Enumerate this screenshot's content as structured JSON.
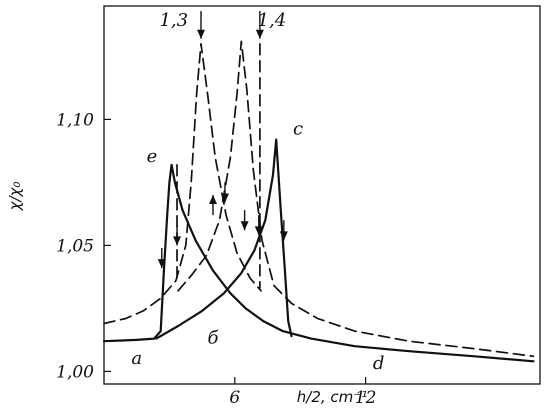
{
  "chart_data": {
    "type": "line",
    "xlabel": "h/2, cm⁻¹",
    "ylabel": "χ/χ₀",
    "xlim": [
      0,
      20
    ],
    "ylim": [
      0.995,
      1.145
    ],
    "x_ticks": [
      {
        "value": 6,
        "label": "6"
      },
      {
        "value": 12,
        "label": "12"
      }
    ],
    "y_ticks": [
      {
        "value": 1.0,
        "label": "1,00"
      },
      {
        "value": 1.05,
        "label": "1,05"
      },
      {
        "value": 1.1,
        "label": "1,10"
      }
    ],
    "grid": false,
    "series": [
      {
        "style": "solid",
        "points": [
          [
            0,
            1.012
          ],
          [
            1.5,
            1.0125
          ],
          [
            2.3,
            1.013
          ],
          [
            2.6,
            1.016
          ],
          [
            2.75,
            1.04
          ],
          [
            2.9,
            1.062
          ],
          [
            3.0,
            1.075
          ],
          [
            3.1,
            1.082
          ],
          [
            3.25,
            1.075
          ],
          [
            3.6,
            1.064
          ],
          [
            4.2,
            1.052
          ],
          [
            5.0,
            1.04
          ],
          [
            5.8,
            1.031
          ],
          [
            6.5,
            1.025
          ],
          [
            7.3,
            1.02
          ],
          [
            8.2,
            1.016
          ],
          [
            9.5,
            1.013
          ],
          [
            11.5,
            1.01
          ],
          [
            14,
            1.008
          ],
          [
            17,
            1.006
          ],
          [
            19.7,
            1.004
          ]
        ]
      },
      {
        "style": "solid",
        "points": [
          [
            2.4,
            1.013
          ],
          [
            3.4,
            1.018
          ],
          [
            4.5,
            1.024
          ],
          [
            5.5,
            1.031
          ],
          [
            6.3,
            1.039
          ],
          [
            6.9,
            1.048
          ],
          [
            7.4,
            1.06
          ],
          [
            7.75,
            1.078
          ],
          [
            7.9,
            1.092
          ],
          [
            8.1,
            1.065
          ],
          [
            8.3,
            1.04
          ],
          [
            8.45,
            1.02
          ],
          [
            8.6,
            1.014
          ]
        ]
      },
      {
        "style": "dashed",
        "points": [
          [
            0,
            1.019
          ],
          [
            1.0,
            1.021
          ],
          [
            1.8,
            1.024
          ],
          [
            2.6,
            1.029
          ],
          [
            3.3,
            1.036
          ],
          [
            3.75,
            1.05
          ],
          [
            4.0,
            1.075
          ],
          [
            4.25,
            1.11
          ],
          [
            4.45,
            1.13
          ],
          [
            4.75,
            1.11
          ],
          [
            5.1,
            1.085
          ],
          [
            5.6,
            1.062
          ],
          [
            6.1,
            1.047
          ],
          [
            6.7,
            1.037
          ],
          [
            7.2,
            1.032
          ]
        ]
      },
      {
        "style": "dashed",
        "points": [
          [
            3.4,
            1.032
          ],
          [
            4.0,
            1.038
          ],
          [
            4.7,
            1.046
          ],
          [
            5.3,
            1.06
          ],
          [
            5.8,
            1.085
          ],
          [
            6.1,
            1.11
          ],
          [
            6.3,
            1.131
          ],
          [
            6.55,
            1.112
          ],
          [
            6.85,
            1.08
          ],
          [
            7.25,
            1.052
          ],
          [
            7.8,
            1.034
          ],
          [
            8.6,
            1.027
          ],
          [
            9.8,
            1.021
          ],
          [
            11.5,
            1.016
          ],
          [
            14,
            1.012
          ],
          [
            17,
            1.009
          ],
          [
            19.7,
            1.006
          ]
        ]
      },
      {
        "style": "dashed",
        "points": [
          [
            3.35,
            1.082
          ],
          [
            3.35,
            1.035
          ]
        ]
      },
      {
        "style": "dashed",
        "points": [
          [
            7.15,
            1.13
          ],
          [
            7.15,
            1.033
          ]
        ]
      }
    ],
    "annotations": [
      {
        "text": "1,3",
        "x": 3.2,
        "y": 1.137
      },
      {
        "text": "1,4",
        "x": 7.7,
        "y": 1.137
      },
      {
        "text": "e",
        "x": 2.2,
        "y": 1.083
      },
      {
        "text": "c",
        "x": 8.9,
        "y": 1.094
      },
      {
        "text": "a",
        "x": 1.5,
        "y": 1.003
      },
      {
        "text": "б",
        "x": 5.0,
        "y": 1.011
      },
      {
        "text": "d",
        "x": 12.6,
        "y": 1.001
      }
    ],
    "arrows": [
      {
        "x": 4.45,
        "y1": 1.143,
        "y2": 1.132
      },
      {
        "x": 7.15,
        "y1": 1.143,
        "y2": 1.132
      },
      {
        "x": 2.65,
        "y1": 1.049,
        "y2": 1.041
      },
      {
        "x": 3.35,
        "y1": 1.058,
        "y2": 1.05
      },
      {
        "x": 5.0,
        "y1": 1.062,
        "y2": 1.07
      },
      {
        "x": 5.55,
        "y1": 1.075,
        "y2": 1.067
      },
      {
        "x": 6.45,
        "y1": 1.064,
        "y2": 1.056
      },
      {
        "x": 8.25,
        "y1": 1.06,
        "y2": 1.052
      },
      {
        "x": 7.1,
        "y1": 1.062,
        "y2": 1.054
      }
    ]
  }
}
